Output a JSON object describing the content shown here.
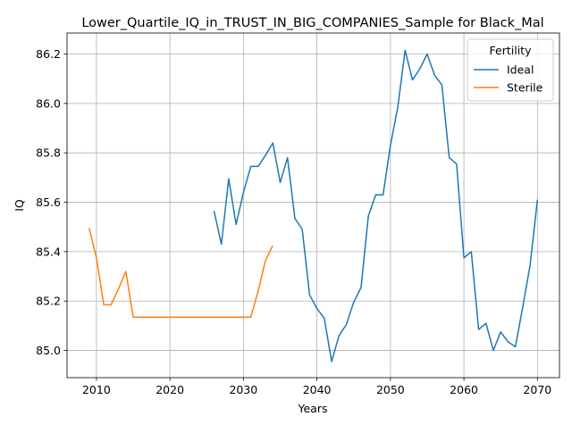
{
  "chart_data": {
    "type": "line",
    "title": "Lower_Quartile_IQ_in_TRUST_IN_BIG_COMPANIES_Sample for Black_Mal",
    "xlabel": "Years",
    "ylabel": "IQ",
    "xlim": [
      2006,
      2073
    ],
    "ylim": [
      84.89,
      86.285
    ],
    "xticks": [
      2010,
      2020,
      2030,
      2040,
      2050,
      2060,
      2070
    ],
    "yticks": [
      85.0,
      85.2,
      85.4,
      85.6,
      85.8,
      86.0,
      86.2
    ],
    "ytick_labels": [
      "85.0",
      "85.2",
      "85.4",
      "85.6",
      "85.8",
      "86.0",
      "86.2"
    ],
    "grid": true,
    "legend": {
      "title": "Fertility",
      "position": "top-right"
    },
    "series": [
      {
        "name": "Ideal",
        "color": "#1f77b4",
        "x": [
          2026,
          2027,
          2028,
          2029,
          2030,
          2031,
          2032,
          2033,
          2034,
          2035,
          2036,
          2037,
          2038,
          2039,
          2040,
          2041,
          2042,
          2043,
          2044,
          2045,
          2046,
          2047,
          2048,
          2049,
          2050,
          2051,
          2052,
          2053,
          2054,
          2055,
          2056,
          2057,
          2058,
          2059,
          2060,
          2061,
          2062,
          2063,
          2064,
          2065,
          2066,
          2067,
          2068,
          2069,
          2070
        ],
        "y": [
          85.565,
          85.43,
          85.695,
          85.51,
          85.64,
          85.745,
          85.745,
          85.79,
          85.84,
          85.68,
          85.78,
          85.535,
          85.49,
          85.225,
          85.17,
          85.13,
          84.955,
          85.06,
          85.105,
          85.195,
          85.255,
          85.545,
          85.63,
          85.63,
          85.83,
          85.985,
          86.215,
          86.095,
          86.14,
          86.2,
          86.115,
          86.075,
          85.78,
          85.755,
          85.375,
          85.4,
          85.085,
          85.11,
          85.0,
          85.075,
          85.035,
          85.015,
          85.175,
          85.345,
          85.61
        ]
      },
      {
        "name": "Sterile",
        "color": "#ff7f0e",
        "x": [
          2009,
          2010,
          2011,
          2012,
          2013,
          2014,
          2015,
          2016,
          2017,
          2018,
          2019,
          2020,
          2021,
          2022,
          2023,
          2024,
          2025,
          2026,
          2027,
          2028,
          2029,
          2030,
          2031,
          2032,
          2033,
          2034
        ],
        "y": [
          85.495,
          85.375,
          85.185,
          85.185,
          85.25,
          85.32,
          85.135,
          85.135,
          85.135,
          85.135,
          85.135,
          85.135,
          85.135,
          85.135,
          85.135,
          85.135,
          85.135,
          85.135,
          85.135,
          85.135,
          85.135,
          85.135,
          85.135,
          85.24,
          85.365,
          85.425
        ]
      }
    ]
  }
}
